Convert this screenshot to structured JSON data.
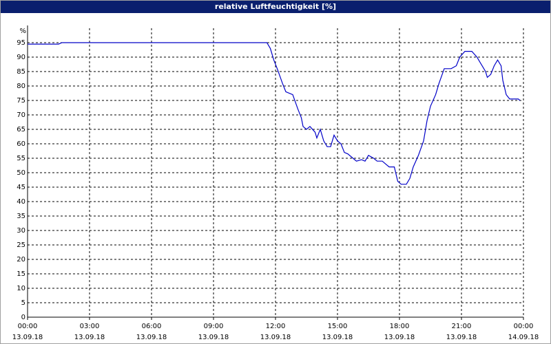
{
  "chart_data": {
    "type": "line",
    "title": "relative Luftfeuchtigkeit [%]",
    "y_label": "%",
    "color": "#0000c8",
    "grid": true,
    "x": [
      "2018-09-13T00:00",
      "2018-09-13T01:30",
      "2018-09-13T01:40",
      "2018-09-13T11:35",
      "2018-09-13T11:45",
      "2018-09-13T11:55",
      "2018-09-13T12:05",
      "2018-09-13T12:20",
      "2018-09-13T12:30",
      "2018-09-13T12:50",
      "2018-09-13T13:05",
      "2018-09-13T13:15",
      "2018-09-13T13:20",
      "2018-09-13T13:30",
      "2018-09-13T13:40",
      "2018-09-13T13:55",
      "2018-09-13T14:00",
      "2018-09-13T14:10",
      "2018-09-13T14:20",
      "2018-09-13T14:30",
      "2018-09-13T14:40",
      "2018-09-13T14:50",
      "2018-09-13T15:00",
      "2018-09-13T15:10",
      "2018-09-13T15:20",
      "2018-09-13T15:30",
      "2018-09-13T15:45",
      "2018-09-13T15:55",
      "2018-09-13T16:10",
      "2018-09-13T16:20",
      "2018-09-13T16:30",
      "2018-09-13T16:45",
      "2018-09-13T16:55",
      "2018-09-13T17:10",
      "2018-09-13T17:20",
      "2018-09-13T17:30",
      "2018-09-13T17:45",
      "2018-09-13T17:55",
      "2018-09-13T18:05",
      "2018-09-13T18:20",
      "2018-09-13T18:30",
      "2018-09-13T18:40",
      "2018-09-13T18:55",
      "2018-09-13T19:10",
      "2018-09-13T19:20",
      "2018-09-13T19:30",
      "2018-09-13T19:45",
      "2018-09-13T19:55",
      "2018-09-13T20:10",
      "2018-09-13T20:20",
      "2018-09-13T20:30",
      "2018-09-13T20:45",
      "2018-09-13T20:55",
      "2018-09-13T21:10",
      "2018-09-13T21:20",
      "2018-09-13T21:30",
      "2018-09-13T21:45",
      "2018-09-13T21:55",
      "2018-09-13T22:10",
      "2018-09-13T22:15",
      "2018-09-13T22:25",
      "2018-09-13T22:35",
      "2018-09-13T22:45",
      "2018-09-13T22:55",
      "2018-09-13T23:00",
      "2018-09-13T23:10",
      "2018-09-13T23:20",
      "2018-09-13T23:30",
      "2018-09-13T23:45",
      "2018-09-13T23:50"
    ],
    "values": [
      94.5,
      94.5,
      95,
      95,
      93,
      89,
      86,
      81,
      78,
      77,
      72,
      69,
      66,
      65,
      66,
      64,
      62,
      65,
      61,
      59,
      59,
      63,
      61,
      60,
      57,
      56.5,
      55,
      54,
      54.5,
      54,
      56,
      55,
      54,
      54,
      53,
      52,
      52,
      47,
      46,
      46,
      48,
      52,
      56,
      61,
      68,
      73,
      77,
      81,
      86,
      86,
      86,
      87,
      90,
      92,
      92,
      92,
      90,
      88,
      85,
      83,
      84,
      87,
      89,
      87,
      82,
      77,
      75.5,
      75.5,
      75.5,
      75
    ],
    "xlim": [
      "2018-09-13T00:00",
      "2018-09-14T00:00"
    ],
    "xticks": [
      {
        "value": "2018-09-13T00:00",
        "label": [
          "00:00",
          "13.09.18"
        ]
      },
      {
        "value": "2018-09-13T03:00",
        "label": [
          "03:00",
          "13.09.18"
        ]
      },
      {
        "value": "2018-09-13T06:00",
        "label": [
          "06:00",
          "13.09.18"
        ]
      },
      {
        "value": "2018-09-13T09:00",
        "label": [
          "09:00",
          "13.09.18"
        ]
      },
      {
        "value": "2018-09-13T12:00",
        "label": [
          "12:00",
          "13.09.18"
        ]
      },
      {
        "value": "2018-09-13T15:00",
        "label": [
          "15:00",
          "13.09.18"
        ]
      },
      {
        "value": "2018-09-13T18:00",
        "label": [
          "18:00",
          "13.09.18"
        ]
      },
      {
        "value": "2018-09-13T21:00",
        "label": [
          "21:00",
          "13.09.18"
        ]
      },
      {
        "value": "2018-09-14T00:00",
        "label": [
          "00:00",
          "14.09.18"
        ]
      }
    ],
    "ylim": [
      0,
      100
    ],
    "yticks": [
      0,
      5,
      10,
      15,
      20,
      25,
      30,
      35,
      40,
      45,
      50,
      55,
      60,
      65,
      70,
      75,
      80,
      85,
      90,
      95
    ]
  }
}
